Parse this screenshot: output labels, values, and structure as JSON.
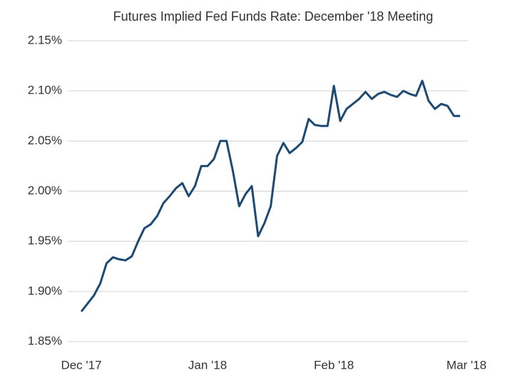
{
  "chart_data": {
    "type": "line",
    "title": "Futures Implied Fed Funds Rate: December '18 Meeting",
    "categories": [
      "Dec '17",
      null,
      null,
      null,
      null,
      null,
      null,
      null,
      null,
      null,
      null,
      null,
      null,
      null,
      null,
      null,
      null,
      null,
      null,
      null,
      "Jan '18",
      null,
      null,
      null,
      null,
      null,
      null,
      null,
      null,
      null,
      null,
      null,
      null,
      null,
      null,
      null,
      null,
      null,
      null,
      null,
      "Feb '18",
      null,
      null,
      null,
      null,
      null,
      null,
      null,
      null,
      null,
      null,
      null,
      null,
      null,
      null,
      null,
      null,
      null,
      null,
      null,
      null,
      "Mar '18"
    ],
    "series": [
      {
        "name": "Futures Implied Fed Funds Rate",
        "color": "#1c4a72",
        "values": [
          1.88,
          1.888,
          1.896,
          1.908,
          1.928,
          1.934,
          1.932,
          1.931,
          1.935,
          1.95,
          1.963,
          1.967,
          1.975,
          1.988,
          1.995,
          2.003,
          2.008,
          1.995,
          2.005,
          2.025,
          2.025,
          2.032,
          2.05,
          2.05,
          2.02,
          1.985,
          1.997,
          2.005,
          1.955,
          1.968,
          1.985,
          2.035,
          2.048,
          2.038,
          2.043,
          2.049,
          2.072,
          2.066,
          2.065,
          2.065,
          2.105,
          2.07,
          2.082,
          2.087,
          2.092,
          2.099,
          2.092,
          2.097,
          2.099,
          2.096,
          2.094,
          2.1,
          2.097,
          2.095,
          2.11,
          2.09,
          2.082,
          2.087,
          2.085,
          2.075,
          2.075,
          null
        ]
      }
    ],
    "ylim": [
      1.85,
      2.15
    ],
    "yticks": [
      {
        "value": 1.85,
        "label": "1.85%"
      },
      {
        "value": 1.9,
        "label": "1.90%"
      },
      {
        "value": 1.95,
        "label": "1.95%"
      },
      {
        "value": 2.0,
        "label": "2.00%"
      },
      {
        "value": 2.05,
        "label": "2.05%"
      },
      {
        "value": 2.1,
        "label": "2.10%"
      },
      {
        "value": 2.15,
        "label": "2.15%"
      }
    ],
    "grid": true
  }
}
